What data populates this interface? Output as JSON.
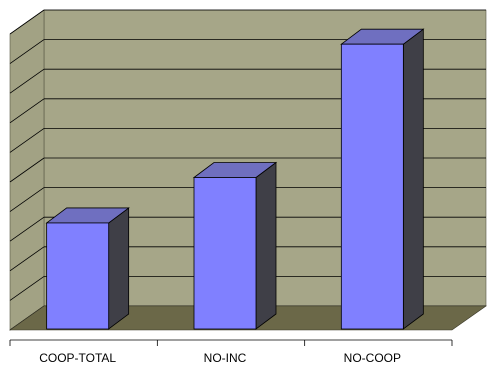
{
  "chart_data": {
    "type": "bar",
    "style": "3d-column",
    "categories": [
      "COOP-TOTAL",
      "NO-INC",
      "NO-COOP"
    ],
    "values": [
      3.5,
      5.0,
      9.4
    ],
    "ylim": [
      0,
      10
    ],
    "yticks": [
      0,
      1,
      2,
      3,
      4,
      5,
      6,
      7,
      8,
      9,
      10
    ],
    "y_tick_labels_visible": false,
    "grid": true,
    "legend": "none",
    "title": "",
    "xlabel": "",
    "ylabel": "",
    "colors": {
      "bar_front": "#8080ff",
      "bar_top": "#6f6fc0",
      "bar_side": "#3f3f47",
      "back_wall": "#a6a688",
      "side_wall": "#a2a284",
      "floor": "#6b6848",
      "gridline": "#000000"
    }
  }
}
